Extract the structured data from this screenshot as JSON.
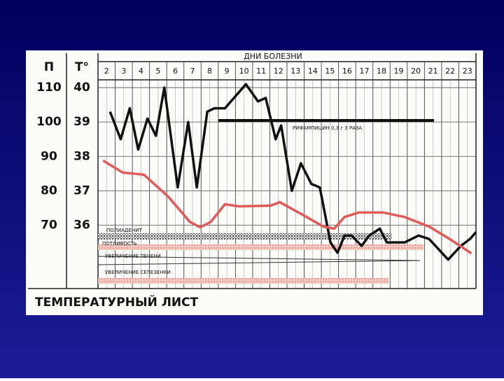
{
  "chart_data": {
    "type": "line",
    "title": "ТЕМПЕРАТУРНЫЙ ЛИСТ",
    "x_label": "ДНИ БОЛЕЗНИ",
    "y_label": "Т°",
    "y2_label": "П",
    "xlim": [
      1.5,
      23.5
    ],
    "xticks": [
      2,
      3,
      4,
      5,
      6,
      7,
      8,
      9,
      10,
      11,
      12,
      13,
      14,
      15,
      16,
      17,
      18,
      19,
      20,
      21,
      22,
      23
    ],
    "ylim": [
      34.2,
      41
    ],
    "yticks": [
      36,
      37,
      38,
      39,
      40
    ],
    "y2lim": [
      52,
      120
    ],
    "y2ticks": [
      70,
      80,
      90,
      100,
      110
    ],
    "grid": true,
    "annotations": [
      "РИФАМПИЦИН 0,3 г 3 РАЗА",
      "ПОЛИАДЕНИТ",
      "ПОТЛИВОСТЬ",
      "УВЕЛИЧЕНИЕ ПЕЧЕНИ",
      "УВЕЛИЧЕНИЕ СЕЛЕЗЕНКИ"
    ],
    "series": [
      {
        "color": "#111111",
        "axis": "y",
        "x": [
          2.2,
          2.82,
          3.35,
          3.84,
          4.38,
          4.87,
          5.36,
          6.14,
          6.75,
          7.25,
          7.86,
          8.27,
          8.89,
          10.11,
          10.81,
          11.26,
          11.84,
          12.16,
          12.78,
          13.31,
          13.92,
          14.41,
          15.03,
          15.44,
          15.85,
          16.26,
          16.84,
          17.29,
          17.9,
          18.31,
          19.34,
          20.16,
          20.77,
          21.88,
          22.62,
          23.15,
          23.5
        ],
        "values": [
          39.3,
          38.5,
          39.4,
          38.2,
          39.1,
          38.6,
          40.0,
          37.1,
          39.0,
          37.1,
          39.3,
          39.4,
          39.4,
          40.1,
          39.6,
          39.7,
          38.5,
          38.9,
          37.0,
          37.8,
          37.2,
          37.1,
          35.5,
          35.2,
          35.7,
          35.7,
          35.4,
          35.7,
          35.9,
          35.5,
          35.5,
          35.7,
          35.6,
          35.0,
          35.4,
          35.6,
          35.8
        ]
      },
      {
        "color": "#e05a5a",
        "axis": "y2",
        "x": [
          1.8,
          2.94,
          4.17,
          5.61,
          6.84,
          7.45,
          8.07,
          8.89,
          9.7,
          11.55,
          12.08,
          13.39,
          14.62,
          15.24,
          15.85,
          16.67,
          18.1,
          19.33,
          20.77,
          22.0,
          23.23
        ],
        "values": [
          88.8,
          85.3,
          84.7,
          78.2,
          71.0,
          69.4,
          71.0,
          76.1,
          75.5,
          75.7,
          76.7,
          73.1,
          69.6,
          69.0,
          72.4,
          73.7,
          73.7,
          72.4,
          69.6,
          65.9,
          61.8
        ]
      }
    ]
  }
}
